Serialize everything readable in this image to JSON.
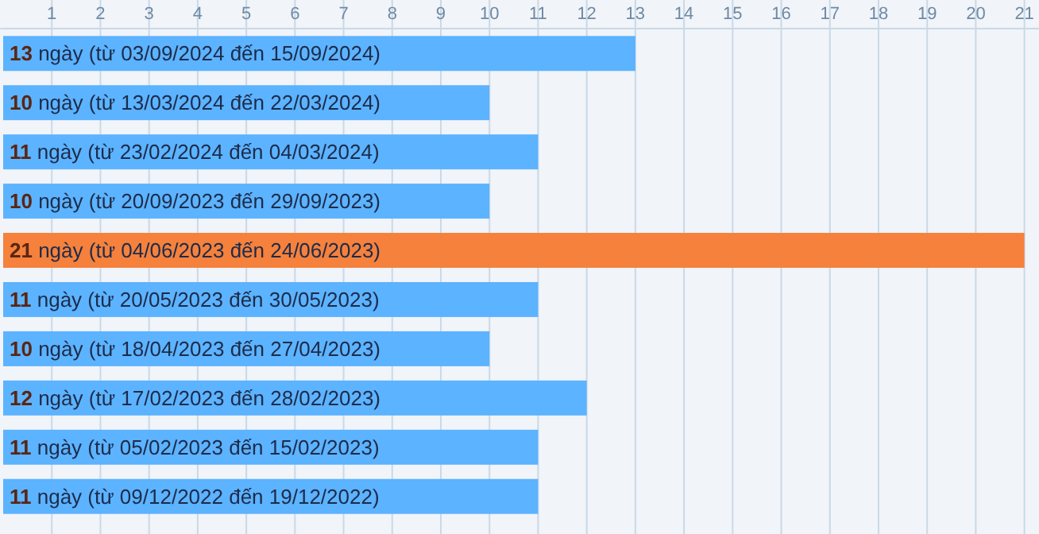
{
  "chart_data": {
    "type": "bar",
    "orientation": "horizontal",
    "categories": [
      null,
      null,
      null,
      null,
      null,
      null,
      null,
      null,
      null,
      null
    ],
    "values": [
      13,
      10,
      11,
      10,
      21,
      11,
      10,
      12,
      11,
      11
    ],
    "colors": [
      "#5cb3ff",
      "#5cb3ff",
      "#5cb3ff",
      "#5cb3ff",
      "#f5813c",
      "#5cb3ff",
      "#5cb3ff",
      "#5cb3ff",
      "#5cb3ff",
      "#5cb3ff"
    ],
    "value_labels": [
      "13 ngày (từ 03/09/2024 đến 15/09/2024)",
      "10 ngày (từ 13/03/2024 đến 22/03/2024)",
      "11 ngày (từ 23/02/2024 đến 04/03/2024)",
      "10 ngày (từ 20/09/2023 đến 29/09/2023)",
      "21 ngày (từ 04/06/2023 đến 24/06/2023)",
      "11 ngày (từ 20/05/2023 đến 30/05/2023)",
      "10 ngày (từ 18/04/2023 đến 27/04/2023)",
      "12 ngày (từ 17/02/2023 đến 28/02/2023)",
      "11 ngày (từ 05/02/2023 đến 15/02/2023)",
      "11 ngày (từ 09/12/2022 đến 19/12/2022)"
    ],
    "xlim": [
      0,
      21.3
    ],
    "xticks": [
      1,
      2,
      3,
      4,
      5,
      6,
      7,
      8,
      9,
      10,
      11,
      12,
      13,
      14,
      15,
      16,
      17,
      18,
      19,
      20,
      21
    ],
    "grid": "x"
  }
}
